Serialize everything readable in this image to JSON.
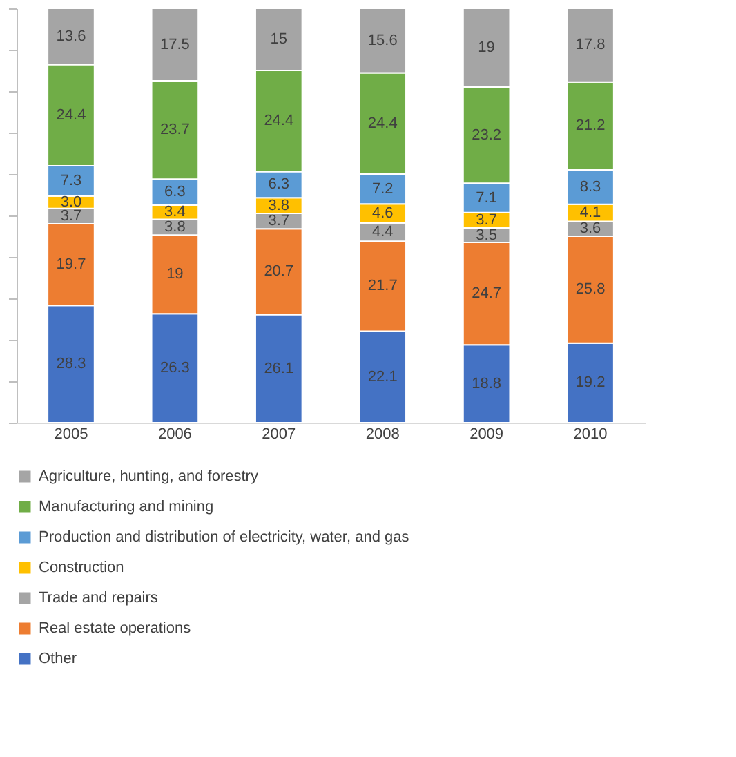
{
  "chart_data": {
    "type": "bar",
    "stacked": true,
    "categories": [
      "2005",
      "2006",
      "2007",
      "2008",
      "2009",
      "2010"
    ],
    "series": [
      {
        "name": "Other",
        "color": "#4472c4",
        "values": [
          28.3,
          26.3,
          26.1,
          22.1,
          18.8,
          19.2
        ],
        "value_labels": [
          "28.3",
          "26.3",
          "26.1",
          "22.1",
          "18.8",
          "19.2"
        ]
      },
      {
        "name": "Real estate operations",
        "color": "#ed7d31",
        "values": [
          19.7,
          19,
          20.7,
          21.7,
          24.7,
          25.8
        ],
        "value_labels": [
          "19.7",
          "19",
          "20.7",
          "21.7",
          "24.7",
          "25.8"
        ]
      },
      {
        "name": "Trade and repairs",
        "color": "#a5a5a5",
        "values": [
          3.7,
          3.8,
          3.7,
          4.4,
          3.5,
          3.6
        ],
        "value_labels": [
          "3.7",
          "3.8",
          "3.7",
          "4.4",
          "3.5",
          "3.6"
        ]
      },
      {
        "name": "Construction",
        "color": "#ffc000",
        "values": [
          3.0,
          3.4,
          3.8,
          4.6,
          3.7,
          4.1
        ],
        "value_labels": [
          "3.0",
          "3.4",
          "3.8",
          "4.6",
          "3.7",
          "4.1"
        ]
      },
      {
        "name": "Production and distribution of electricity, water, and gas",
        "color": "#5b9bd5",
        "values": [
          7.3,
          6.3,
          6.3,
          7.2,
          7.1,
          8.3
        ],
        "value_labels": [
          "7.3",
          "6.3",
          "6.3",
          "7.2",
          "7.1",
          "8.3"
        ]
      },
      {
        "name": "Manufacturing and mining",
        "color": "#70ad47",
        "values": [
          24.4,
          23.7,
          24.4,
          24.4,
          23.2,
          21.2
        ],
        "value_labels": [
          "24.4",
          "23.7",
          "24.4",
          "24.4",
          "23.2",
          "21.2"
        ]
      },
      {
        "name": "Agriculture, hunting, and forestry",
        "color": "#a5a5a5",
        "values": [
          13.6,
          17.5,
          15,
          15.6,
          19,
          17.8
        ],
        "value_labels": [
          "13.6",
          "17.5",
          "15",
          "15.6",
          "19",
          "17.8"
        ]
      }
    ],
    "ylim": [
      0,
      100
    ],
    "yticks": [
      {
        "value": 0,
        "label": null
      },
      {
        "value": 10,
        "label": null
      },
      {
        "value": 20,
        "label": null
      },
      {
        "value": 30,
        "label": null
      },
      {
        "value": 40,
        "label": null
      },
      {
        "value": 50,
        "label": null
      },
      {
        "value": 60,
        "label": null
      },
      {
        "value": 70,
        "label": null
      },
      {
        "value": 80,
        "label": null
      },
      {
        "value": 90,
        "label": null
      },
      {
        "value": 100,
        "label": null
      }
    ],
    "tick_labels": "x",
    "legend": "bottom"
  }
}
